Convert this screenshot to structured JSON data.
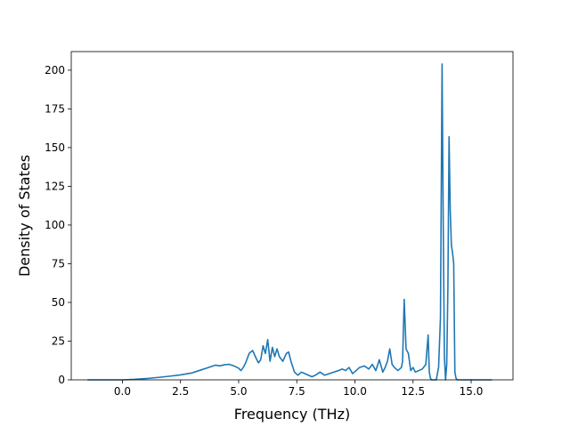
{
  "chart_data": {
    "type": "line",
    "xlabel": "Frequency (THz)",
    "ylabel": "Density of States",
    "xlim": [
      -2.2,
      16.8
    ],
    "ylim": [
      0,
      212
    ],
    "xticks": [
      0.0,
      2.5,
      5.0,
      7.5,
      10.0,
      12.5,
      15.0
    ],
    "xtick_labels": [
      "0.0",
      "2.5",
      "5.0",
      "7.5",
      "10.0",
      "12.5",
      "15.0"
    ],
    "yticks": [
      0,
      25,
      50,
      75,
      100,
      125,
      150,
      175,
      200
    ],
    "ytick_labels": [
      "0",
      "25",
      "50",
      "75",
      "100",
      "125",
      "150",
      "175",
      "200"
    ],
    "grid": false,
    "line_color": "#1f77b4",
    "series": [
      {
        "x": [
          -1.5,
          -0.5,
          0.0,
          0.5,
          1.0,
          1.5,
          2.0,
          2.5,
          2.8,
          3.0,
          3.2,
          3.4,
          3.6,
          3.8,
          4.0,
          4.2,
          4.4,
          4.6,
          4.8,
          5.0,
          5.1,
          5.2,
          5.3,
          5.45,
          5.6,
          5.75,
          5.85,
          5.95,
          6.05,
          6.15,
          6.25,
          6.35,
          6.45,
          6.55,
          6.65,
          6.75,
          6.9,
          7.05,
          7.15,
          7.25,
          7.4,
          7.55,
          7.7,
          7.85,
          8.0,
          8.15,
          8.3,
          8.5,
          8.7,
          8.9,
          9.1,
          9.3,
          9.45,
          9.6,
          9.75,
          9.9,
          10.05,
          10.2,
          10.4,
          10.6,
          10.75,
          10.9,
          11.05,
          11.2,
          11.3,
          11.4,
          11.5,
          11.6,
          11.7,
          11.85,
          12.0,
          12.05,
          12.12,
          12.2,
          12.3,
          12.4,
          12.5,
          12.6,
          12.75,
          12.9,
          13.05,
          13.15,
          13.2,
          13.25,
          13.3,
          13.35,
          13.5,
          13.6,
          13.68,
          13.75,
          13.8,
          13.85,
          13.9,
          13.95,
          14.0,
          14.05,
          14.1,
          14.15,
          14.2,
          14.25,
          14.3,
          14.35,
          14.4,
          14.5,
          14.7,
          15.0,
          15.5,
          15.9
        ],
        "y": [
          0,
          0,
          0,
          0.3,
          0.8,
          1.5,
          2.3,
          3.2,
          4,
          4.5,
          5.5,
          6.5,
          7.5,
          8.5,
          9.5,
          9,
          9.8,
          10,
          9,
          7.5,
          6,
          8,
          11,
          17,
          19,
          14,
          11,
          13,
          22,
          17,
          26,
          12,
          21,
          15,
          20,
          15,
          12,
          17,
          18,
          12,
          5,
          3,
          5,
          4,
          3,
          2,
          3,
          5,
          3,
          4,
          5,
          6,
          7,
          6,
          8,
          4,
          6,
          8,
          9,
          7,
          10,
          6,
          13,
          5,
          8,
          12,
          20,
          10,
          8,
          6,
          8,
          12,
          52,
          20,
          17,
          6,
          8,
          5,
          6,
          7,
          10,
          29,
          5,
          1,
          0,
          0,
          0,
          8,
          40,
          204,
          100,
          15,
          0,
          10,
          60,
          157,
          110,
          87,
          82,
          75,
          5,
          1,
          0,
          0,
          0,
          0,
          0,
          0
        ]
      }
    ]
  }
}
